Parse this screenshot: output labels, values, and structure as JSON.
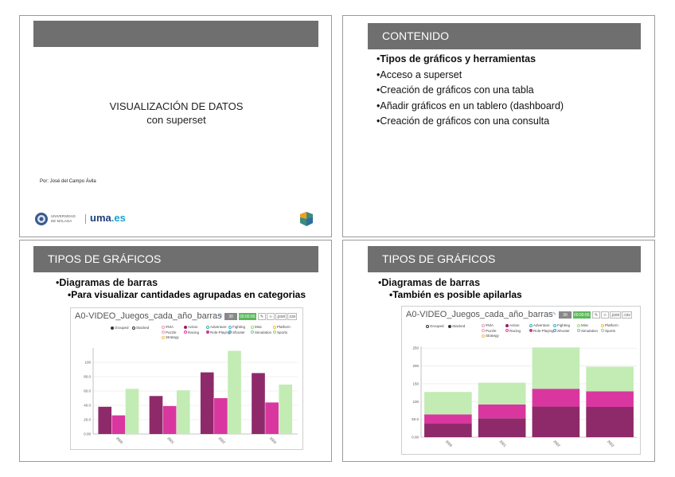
{
  "slides": {
    "s1": {
      "title": "VISUALIZACIÓN DE DATOS",
      "subtitle": "con superset",
      "author": "Por: José del Campo Ávila",
      "logo_uni_line1": "UNIVERSIDAD",
      "logo_uni_line2": "DE MÁLAGA",
      "logo_uma": "uma",
      "logo_es": ".es"
    },
    "s2": {
      "header": "CONTENIDO",
      "bullets": [
        "Tipos de gráficos y herramientas",
        "Acceso a superset",
        "Creación de gráficos con una tabla",
        "Añadir gráficos en un tablero (dashboard)",
        "Creación de gráficos con una consulta"
      ]
    },
    "s3": {
      "header": "TIPOS DE GRÁFICOS",
      "bullet": "Diagramas de barras",
      "sub": "Para visualizar cantidades agrupadas en categorias"
    },
    "s4": {
      "header": "TIPOS DE GRÁFICOS",
      "bullet": "Diagramas de barras",
      "sub": "También es posible apilarlas"
    }
  },
  "chart_ui": {
    "title": "A0-VIDEO_Juegos_cada_año_barras",
    "btn_rows": "30 rows",
    "btn_time": "00:00:00.0",
    "btn_json": ".json",
    "btn_csv": ".csv",
    "mode_grouped": "Grouped",
    "mode_stacked": "Stacked"
  },
  "legend": [
    {
      "name": "#N/A",
      "color": "#e8a0b0"
    },
    {
      "name": "Action",
      "color": "#9c1c5e"
    },
    {
      "name": "Adventure",
      "color": "#3bb3a0"
    },
    {
      "name": "Fighting",
      "color": "#3ab0d0"
    },
    {
      "name": "Misc",
      "color": "#a6d87c"
    },
    {
      "name": "Platform",
      "color": "#f0c040"
    },
    {
      "name": "Puzzle",
      "color": "#f0a0b8"
    },
    {
      "name": "Racing",
      "color": "#e83aa6"
    },
    {
      "name": "Role-Playing",
      "color": "#cc3399"
    },
    {
      "name": "Shooter",
      "color": "#2a9fd0"
    },
    {
      "name": "Simulation",
      "color": "#77c8a0"
    },
    {
      "name": "Sports",
      "color": "#8ed878"
    },
    {
      "name": "Strategy",
      "color": "#f0c060"
    }
  ],
  "chart_data": [
    {
      "type": "bar",
      "mode": "grouped",
      "categories": [
        "2000",
        "2001",
        "2002",
        "2003"
      ],
      "series": [
        {
          "name": "Action",
          "color": "#8e2a6a",
          "values": [
            38,
            53,
            86,
            85
          ]
        },
        {
          "name": "Role-Playing",
          "color": "#d9379f",
          "values": [
            26,
            39,
            50,
            44
          ]
        },
        {
          "name": "Sports",
          "color": "#c2ecb4",
          "values": [
            63,
            61,
            116,
            69
          ]
        }
      ],
      "ylim": [
        0,
        120
      ],
      "yticks": [
        0,
        20,
        40,
        60,
        80,
        100
      ],
      "ytick_labels": [
        "0.00",
        "20.0",
        "40.0",
        "60.0",
        "80.0",
        "100"
      ]
    },
    {
      "type": "bar",
      "mode": "stacked",
      "categories": [
        "2000",
        "2001",
        "2002",
        "2003"
      ],
      "series": [
        {
          "name": "Action",
          "color": "#8e2a6a",
          "values": [
            38,
            53,
            86,
            85
          ]
        },
        {
          "name": "Role-Playing",
          "color": "#d9379f",
          "values": [
            26,
            39,
            50,
            44
          ]
        },
        {
          "name": "Sports",
          "color": "#c2ecb4",
          "values": [
            63,
            61,
            116,
            69
          ]
        }
      ],
      "ylim": [
        0,
        255
      ],
      "yticks": [
        0,
        50,
        100,
        150,
        200,
        250
      ],
      "ytick_labels": [
        "0.00",
        "50.0",
        "100",
        "150",
        "200",
        "250"
      ]
    }
  ]
}
